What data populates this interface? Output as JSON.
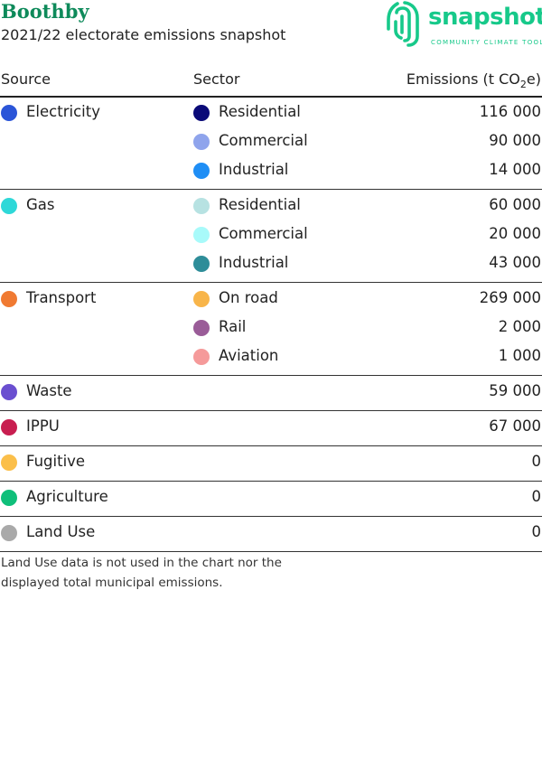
{
  "header": {
    "title": "Boothby",
    "subtitle": "2021/22 electorate emissions snapshot",
    "logo": {
      "word": "snapshot",
      "tagline": "COMMUNITY CLIMATE TOOL",
      "color": "#17c98a"
    }
  },
  "columns": {
    "source": "Source",
    "sector": "Sector",
    "emissions_prefix": "Emissions (t CO",
    "emissions_sub": "2",
    "emissions_suffix": "e)"
  },
  "groups": [
    {
      "source": "Electricity",
      "color": "#2b55d8",
      "sectors": [
        {
          "name": "Residential",
          "color": "#0a0a78",
          "value": "116 000"
        },
        {
          "name": "Commercial",
          "color": "#8fa4ec",
          "value": "90 000"
        },
        {
          "name": "Industrial",
          "color": "#1f8ef5",
          "value": "14 000"
        }
      ]
    },
    {
      "source": "Gas",
      "color": "#2ed8d8",
      "sectors": [
        {
          "name": "Residential",
          "color": "#b7e2e2",
          "value": "60 000"
        },
        {
          "name": "Commercial",
          "color": "#a8fafa",
          "value": "20 000"
        },
        {
          "name": "Industrial",
          "color": "#2e8d99",
          "value": "43 000"
        }
      ]
    },
    {
      "source": "Transport",
      "color": "#f07a32",
      "sectors": [
        {
          "name": "On road",
          "color": "#f8b54a",
          "value": "269 000"
        },
        {
          "name": "Rail",
          "color": "#9a5c98",
          "value": "2 000"
        },
        {
          "name": "Aviation",
          "color": "#f59a9a",
          "value": "1 000"
        }
      ]
    },
    {
      "source": "Waste",
      "color": "#6a4fd0",
      "value": "59 000",
      "sectors": []
    },
    {
      "source": "IPPU",
      "color": "#c81e50",
      "value": "67 000",
      "sectors": []
    },
    {
      "source": "Fugitive",
      "color": "#fbbf4a",
      "value": "0",
      "sectors": []
    },
    {
      "source": "Agriculture",
      "color": "#0fbf7a",
      "value": "0",
      "sectors": []
    },
    {
      "source": "Land Use",
      "color": "#a9a9a9",
      "value": "0",
      "sectors": []
    }
  ],
  "footnote": "Land Use data is not used in the chart nor the displayed total municipal emissions."
}
